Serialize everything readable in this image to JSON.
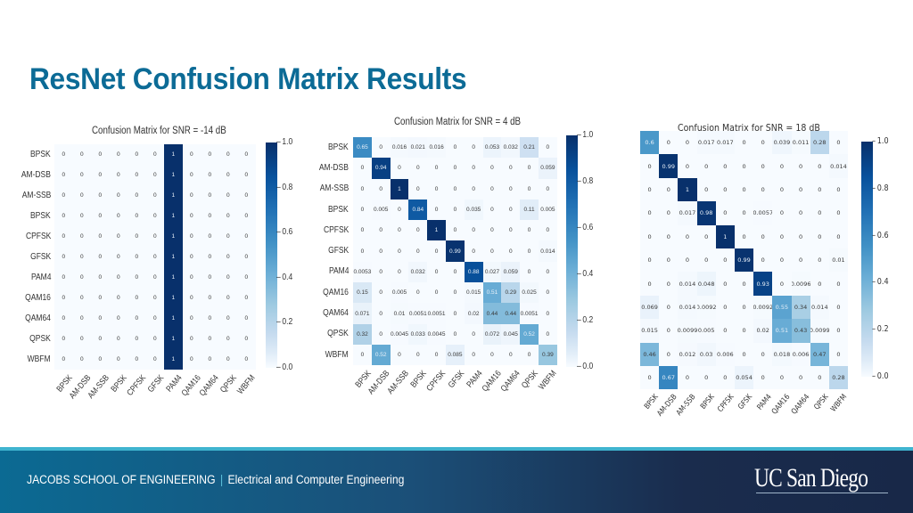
{
  "slide": {
    "title": "ResNet Confusion Matrix Results"
  },
  "footer": {
    "school": "JACOBS SCHOOL OF ENGINEERING",
    "separator": "|",
    "department": "Electrical and Computer Engineering",
    "logo_text": "UC San Diego",
    "colors": {
      "gradient_start": "#0b6a93",
      "gradient_end": "#182848",
      "stripe": "#3fb4cf"
    }
  },
  "chart_data": [
    {
      "type": "heatmap",
      "title": "Confusion Matrix for SNR = -14 dB",
      "row_labels": [
        "BPSK",
        "AM-DSB",
        "AM-SSB",
        "BPSK",
        "CPFSK",
        "GFSK",
        "PAM4",
        "QAM16",
        "QAM64",
        "QPSK",
        "WBFM"
      ],
      "col_labels": [
        "BPSK",
        "AM-DSB",
        "AM-SSB",
        "BPSK",
        "CPFSK",
        "GFSK",
        "PAM4",
        "QAM16",
        "QAM64",
        "QPSK",
        "WBFM"
      ],
      "values": [
        [
          "0",
          "0",
          "0",
          "0",
          "0",
          "0",
          "1",
          "0",
          "0",
          "0",
          "0"
        ],
        [
          "0",
          "0",
          "0",
          "0",
          "0",
          "0",
          "1",
          "0",
          "0",
          "0",
          "0"
        ],
        [
          "0",
          "0",
          "0",
          "0",
          "0",
          "0",
          "1",
          "0",
          "0",
          "0",
          "0"
        ],
        [
          "0",
          "0",
          "0",
          "0",
          "0",
          "0",
          "1",
          "0",
          "0",
          "0",
          "0"
        ],
        [
          "0",
          "0",
          "0",
          "0",
          "0",
          "0",
          "1",
          "0",
          "0",
          "0",
          "0"
        ],
        [
          "0",
          "0",
          "0",
          "0",
          "0",
          "0",
          "1",
          "0",
          "0",
          "0",
          "0"
        ],
        [
          "0",
          "0",
          "0",
          "0",
          "0",
          "0",
          "1",
          "0",
          "0",
          "0",
          "0"
        ],
        [
          "0",
          "0",
          "0",
          "0",
          "0",
          "0",
          "1",
          "0",
          "0",
          "0",
          "0"
        ],
        [
          "0",
          "0",
          "0",
          "0",
          "0",
          "0",
          "1",
          "0",
          "0",
          "0",
          "0"
        ],
        [
          "0",
          "0",
          "0",
          "0",
          "0",
          "0",
          "1",
          "0",
          "0",
          "0",
          "0"
        ],
        [
          "0",
          "0",
          "0",
          "0",
          "0",
          "0",
          "1",
          "0",
          "0",
          "0",
          "0"
        ]
      ],
      "colorbar": {
        "ticks": [
          "1.0",
          "0.8",
          "0.6",
          "0.4",
          "0.2",
          "0.0"
        ],
        "range": [
          0,
          1
        ],
        "cmap": "Blues"
      }
    },
    {
      "type": "heatmap",
      "title": "Confusion Matrix for SNR = 4 dB",
      "row_labels": [
        "BPSK",
        "AM-DSB",
        "AM-SSB",
        "BPSK",
        "CPFSK",
        "GFSK",
        "PAM4",
        "QAM16",
        "QAM64",
        "QPSK",
        "WBFM"
      ],
      "col_labels": [
        "BPSK",
        "AM-DSB",
        "AM-SSB",
        "BPSK",
        "CPFSK",
        "GFSK",
        "PAM4",
        "QAM16",
        "QAM64",
        "QPSK",
        "WBFM"
      ],
      "values": [
        [
          "0.65",
          "0",
          "0.016",
          "0.021",
          "0.016",
          "0",
          "0",
          "0.053",
          "0.032",
          "0.21",
          "0"
        ],
        [
          "0",
          "0.94",
          "0",
          "0",
          "0",
          "0",
          "0",
          "0",
          "0",
          "0",
          "0.059"
        ],
        [
          "0",
          "0",
          "1",
          "0",
          "0",
          "0",
          "0",
          "0",
          "0",
          "0",
          "0"
        ],
        [
          "0",
          "0.005",
          "0",
          "0.84",
          "0",
          "0",
          "0.035",
          "0",
          "0",
          "0.11",
          "0.005"
        ],
        [
          "0",
          "0",
          "0",
          "0",
          "1",
          "0",
          "0",
          "0",
          "0",
          "0",
          "0"
        ],
        [
          "0",
          "0",
          "0",
          "0",
          "0",
          "0.99",
          "0",
          "0",
          "0",
          "0",
          "0.014"
        ],
        [
          "0.0053",
          "0",
          "0",
          "0.032",
          "0",
          "0",
          "0.88",
          "0.027",
          "0.059",
          "0",
          "0"
        ],
        [
          "0.15",
          "0",
          "0.005",
          "0",
          "0",
          "0",
          "0.015",
          "0.51",
          "0.29",
          "0.025",
          "0"
        ],
        [
          "0.071",
          "0",
          "0.01",
          "0.0051",
          "0.0051",
          "0",
          "0.02",
          "0.44",
          "0.44",
          "0.0051",
          "0"
        ],
        [
          "0.32",
          "0",
          "0.0045",
          "0.033",
          "0.0045",
          "0",
          "0",
          "0.072",
          "0.045",
          "0.52",
          "0"
        ],
        [
          "0",
          "0.52",
          "0",
          "0",
          "0",
          "0.085",
          "0",
          "0",
          "0",
          "0",
          "0.39"
        ]
      ],
      "colorbar": {
        "ticks": [
          "1.0",
          "0.8",
          "0.6",
          "0.4",
          "0.2",
          "0.0"
        ],
        "range": [
          0,
          1
        ],
        "cmap": "Blues"
      }
    },
    {
      "type": "heatmap",
      "title": "Confusion Matrix for SNR = 18 dB",
      "row_labels": [],
      "col_labels": [
        "BPSK",
        "AM-DSB",
        "AM-SSB",
        "BPSK",
        "CPFSK",
        "GFSK",
        "PAM4",
        "QAM16",
        "QAM64",
        "QPSK",
        "WBFM"
      ],
      "values": [
        [
          "0.6",
          "0",
          "0",
          "0.017",
          "0.017",
          "0",
          "0",
          "0.039",
          "0.011",
          "0.28",
          "0"
        ],
        [
          "0",
          "0.99",
          "0",
          "0",
          "0",
          "0",
          "0",
          "0",
          "0",
          "0",
          "0.014"
        ],
        [
          "0",
          "0",
          "1",
          "0",
          "0",
          "0",
          "0",
          "0",
          "0",
          "0",
          "0"
        ],
        [
          "0",
          "0",
          "0.017",
          "0.98",
          "0",
          "0",
          "0.0057",
          "0",
          "0",
          "0",
          "0"
        ],
        [
          "0",
          "0",
          "0",
          "0",
          "1",
          "0",
          "0",
          "0",
          "0",
          "0",
          "0"
        ],
        [
          "0",
          "0",
          "0",
          "0",
          "0",
          "0.99",
          "0",
          "0",
          "0",
          "0",
          "0.01"
        ],
        [
          "0",
          "0",
          "0.014",
          "0.048",
          "0",
          "0",
          "0.93",
          "0",
          "0.0096",
          "0",
          "0"
        ],
        [
          "0.069",
          "0",
          "0.014",
          "0.0092",
          "0",
          "0",
          "0.0092",
          "0.55",
          "0.34",
          "0.014",
          "0"
        ],
        [
          "0.015",
          "0",
          "0.0099",
          "0.005",
          "0",
          "0",
          "0.02",
          "0.51",
          "0.43",
          "0.0099",
          "0"
        ],
        [
          "0.46",
          "0",
          "0.012",
          "0.03",
          "0.006",
          "0",
          "0",
          "0.018",
          "0.006",
          "0.47",
          "0"
        ],
        [
          "0",
          "0.67",
          "0",
          "0",
          "0",
          "0.054",
          "0",
          "0",
          "0",
          "0",
          "0.28"
        ]
      ],
      "colorbar": {
        "ticks": [
          "1.0",
          "0.8",
          "0.6",
          "0.4",
          "0.2",
          "0.0"
        ],
        "range": [
          0,
          1
        ],
        "cmap": "Blues"
      }
    }
  ]
}
